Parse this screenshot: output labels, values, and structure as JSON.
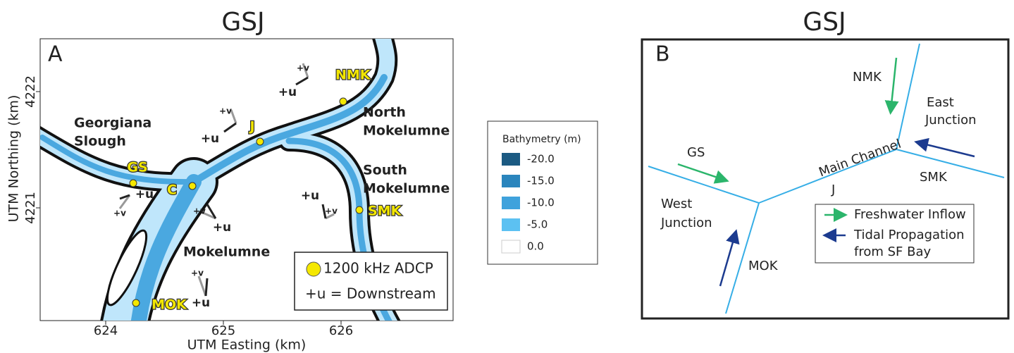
{
  "panel_a": {
    "title": "GSJ",
    "label": "A",
    "x_axis": {
      "label": "UTM Easting (km)",
      "ticks": [
        624,
        625,
        626
      ]
    },
    "y_axis": {
      "label": "UTM Northing (km)",
      "ticks": [
        4222,
        4221
      ]
    },
    "regions": [
      [
        "Georgiana",
        "Slough"
      ],
      [
        "North",
        "Mokelumne"
      ],
      [
        "South",
        "Mokelumne"
      ],
      [
        "Mokelumne"
      ]
    ],
    "stations": [
      {
        "name": "NMK",
        "u": "+u",
        "v": "+v"
      },
      {
        "name": "J",
        "u": "+u",
        "v": "+v"
      },
      {
        "name": "GS",
        "u": "+u",
        "v": "+v"
      },
      {
        "name": "C",
        "u": "+u",
        "v": "+v"
      },
      {
        "name": "SMK",
        "u": "+u",
        "v": "+v"
      },
      {
        "name": "MOK",
        "u": "+u",
        "v": "+v"
      }
    ],
    "legend": [
      "1200 kHz ADCP",
      "+u = Downstream"
    ]
  },
  "bathymetry_legend": {
    "title": "Bathymetry (m)",
    "levels": [
      "-20.0",
      "-15.0",
      "-10.0",
      "-5.0",
      "0.0"
    ]
  },
  "panel_b": {
    "title": "GSJ",
    "label": "B",
    "labels": [
      "NMK",
      "East",
      "Junction",
      "GS",
      "Main Channel",
      "J",
      "SMK",
      "West",
      "Junction",
      "MOK"
    ],
    "legend": [
      "Freshwater Inflow",
      "Tidal Propagation",
      "from SF Bay"
    ]
  }
}
